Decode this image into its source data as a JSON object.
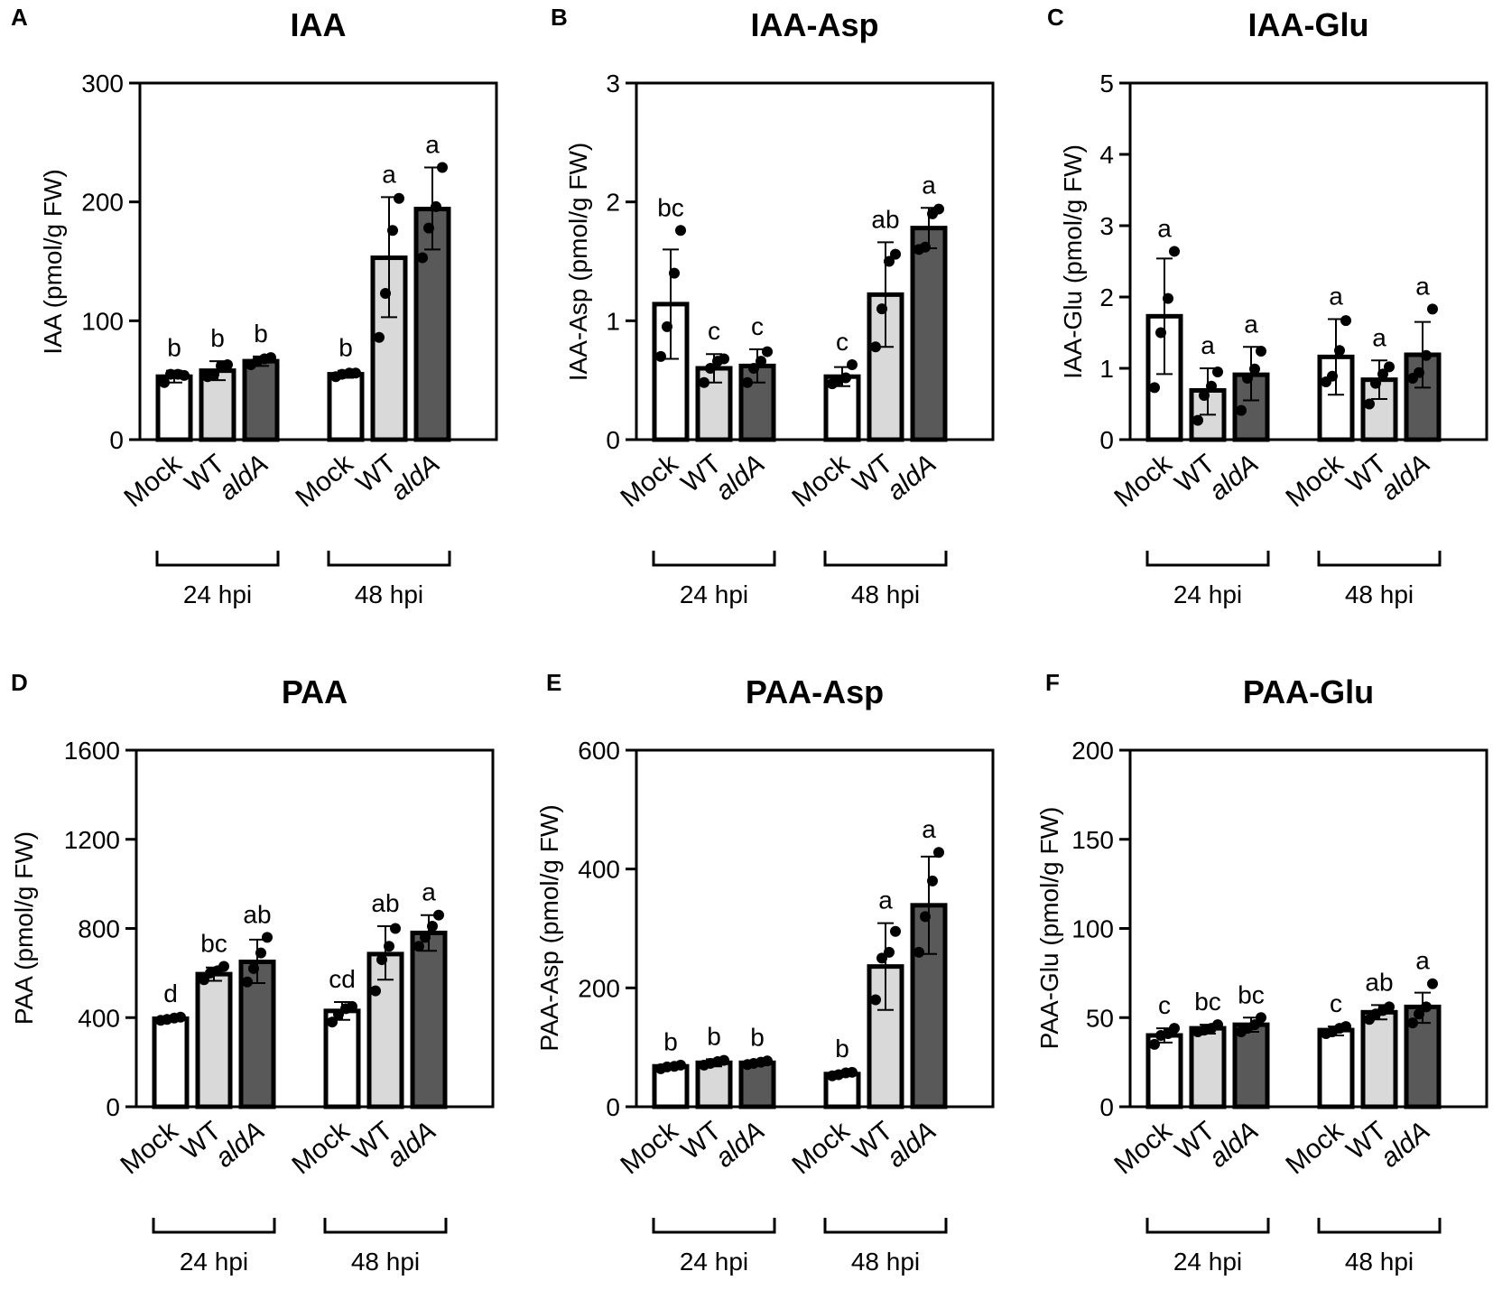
{
  "figure": {
    "groups": [
      "24 hpi",
      "48 hpi"
    ],
    "bar_colors": {
      "Mock": "#ffffff",
      "WT": "#d9d9d9",
      "aldA": "#595959"
    },
    "bar_stroke": "#000000",
    "point_color": "#000000"
  },
  "chart_data": [
    {
      "panel": "A",
      "title": "IAA",
      "type": "bar",
      "ylabel": "IAA (pmol/g FW)",
      "ylim": [
        0,
        300
      ],
      "yticks": [
        0,
        100,
        200,
        300
      ],
      "categories": [
        "Mock",
        "WT",
        "aldA",
        "Mock",
        "WT",
        "aldA"
      ],
      "values": [
        53,
        58,
        66,
        55,
        153,
        194
      ],
      "error": [
        [
          48,
          58
        ],
        [
          50,
          66
        ],
        [
          62,
          70
        ],
        [
          52,
          58
        ],
        [
          103,
          204
        ],
        [
          160,
          229
        ]
      ],
      "points": [
        [
          48,
          55,
          55,
          54
        ],
        [
          53,
          55,
          62,
          63
        ],
        [
          63,
          66,
          68,
          69
        ],
        [
          53,
          55,
          56,
          56
        ],
        [
          86,
          123,
          176,
          203
        ],
        [
          153,
          178,
          196,
          229
        ]
      ],
      "letters": [
        "b",
        "b",
        "b",
        "b",
        "a",
        "a"
      ]
    },
    {
      "panel": "B",
      "title": "IAA-Asp",
      "type": "bar",
      "ylabel": "IAA-Asp (pmol/g FW)",
      "ylim": [
        0,
        3
      ],
      "yticks": [
        0,
        1,
        2,
        3
      ],
      "categories": [
        "Mock",
        "WT",
        "aldA",
        "Mock",
        "WT",
        "aldA"
      ],
      "values": [
        1.14,
        0.6,
        0.62,
        0.53,
        1.22,
        1.78
      ],
      "error": [
        [
          0.68,
          1.6
        ],
        [
          0.48,
          0.72
        ],
        [
          0.48,
          0.76
        ],
        [
          0.45,
          0.61
        ],
        [
          0.78,
          1.66
        ],
        [
          1.61,
          1.95
        ]
      ],
      "points": [
        [
          0.7,
          0.95,
          1.4,
          1.76
        ],
        [
          0.48,
          0.6,
          0.66,
          0.68
        ],
        [
          0.48,
          0.6,
          0.66,
          0.74
        ],
        [
          0.47,
          0.5,
          0.52,
          0.63
        ],
        [
          0.78,
          1.1,
          1.5,
          1.56
        ],
        [
          1.6,
          1.62,
          1.9,
          1.94
        ]
      ],
      "letters": [
        "bc",
        "c",
        "c",
        "c",
        "ab",
        "a"
      ]
    },
    {
      "panel": "C",
      "title": "IAA-Glu",
      "type": "bar",
      "ylabel": "IAA-Glu (pmol/g FW)",
      "ylim": [
        0,
        5
      ],
      "yticks": [
        0,
        1,
        2,
        3,
        4,
        5
      ],
      "categories": [
        "Mock",
        "WT",
        "aldA",
        "Mock",
        "WT",
        "aldA"
      ],
      "values": [
        1.73,
        0.69,
        0.91,
        1.16,
        0.84,
        1.19
      ],
      "error": [
        [
          0.92,
          2.54
        ],
        [
          0.35,
          1.0
        ],
        [
          0.55,
          1.3
        ],
        [
          0.63,
          1.69
        ],
        [
          0.57,
          1.11
        ],
        [
          0.73,
          1.65
        ]
      ],
      "points": [
        [
          0.73,
          1.5,
          1.98,
          2.64
        ],
        [
          0.27,
          0.62,
          0.75,
          0.95
        ],
        [
          0.41,
          0.86,
          0.99,
          1.24
        ],
        [
          0.81,
          0.89,
          1.25,
          1.67
        ],
        [
          0.5,
          0.79,
          0.92,
          1.02
        ],
        [
          0.86,
          0.94,
          1.18,
          1.83
        ]
      ],
      "letters": [
        "a",
        "a",
        "a",
        "a",
        "a",
        "a"
      ]
    },
    {
      "panel": "D",
      "title": "PAA",
      "type": "bar",
      "ylabel": "PAA (pmol/g FW)",
      "ylim": [
        0,
        1600
      ],
      "yticks": [
        0,
        400,
        800,
        1200,
        1600
      ],
      "categories": [
        "Mock",
        "WT",
        "aldA",
        "Mock",
        "WT",
        "aldA"
      ],
      "values": [
        395,
        595,
        650,
        430,
        685,
        780
      ],
      "error": [
        [
          385,
          405
        ],
        [
          565,
          625
        ],
        [
          555,
          750
        ],
        [
          390,
          470
        ],
        [
          570,
          810
        ],
        [
          700,
          860
        ]
      ],
      "points": [
        [
          388,
          392,
          398,
          402
        ],
        [
          570,
          600,
          610,
          630
        ],
        [
          560,
          620,
          690,
          760
        ],
        [
          380,
          415,
          440,
          450
        ],
        [
          520,
          660,
          720,
          800
        ],
        [
          720,
          760,
          810,
          860
        ]
      ],
      "letters": [
        "d",
        "bc",
        "ab",
        "cd",
        "ab",
        "a"
      ]
    },
    {
      "panel": "E",
      "title": "PAA-Asp",
      "type": "bar",
      "ylabel": "PAA-Asp (pmol/g FW)",
      "ylim": [
        0,
        600
      ],
      "yticks": [
        0,
        200,
        400,
        600
      ],
      "categories": [
        "Mock",
        "WT",
        "aldA",
        "Mock",
        "WT",
        "aldA"
      ],
      "values": [
        68,
        74,
        74,
        55,
        236,
        339
      ],
      "error": [
        [
          63,
          71
        ],
        [
          68,
          80
        ],
        [
          70,
          78
        ],
        [
          52,
          59
        ],
        [
          163,
          309
        ],
        [
          257,
          421
        ]
      ],
      "points": [
        [
          64,
          67,
          68,
          70
        ],
        [
          70,
          73,
          76,
          78
        ],
        [
          71,
          73,
          75,
          77
        ],
        [
          52,
          54,
          57,
          58
        ],
        [
          180,
          250,
          260,
          295
        ],
        [
          260,
          320,
          380,
          428
        ]
      ],
      "letters": [
        "b",
        "b",
        "b",
        "b",
        "a",
        "a"
      ]
    },
    {
      "panel": "F",
      "title": "PAA-Glu",
      "type": "bar",
      "ylabel": "PAA-Glu (pmol/g FW)",
      "ylim": [
        0,
        200
      ],
      "yticks": [
        0,
        50,
        100,
        150,
        200
      ],
      "categories": [
        "Mock",
        "WT",
        "aldA",
        "Mock",
        "WT",
        "aldA"
      ],
      "values": [
        40,
        44,
        46,
        43,
        53,
        56
      ],
      "error": [
        [
          36,
          44
        ],
        [
          41,
          46
        ],
        [
          42,
          50
        ],
        [
          40,
          45
        ],
        [
          49,
          57
        ],
        [
          47,
          64
        ]
      ],
      "points": [
        [
          35,
          40,
          41,
          44
        ],
        [
          42,
          43,
          44,
          46
        ],
        [
          42,
          44,
          46,
          50
        ],
        [
          41,
          42,
          44,
          45
        ],
        [
          49,
          52,
          54,
          56
        ],
        [
          47,
          52,
          56,
          69
        ]
      ],
      "letters": [
        "c",
        "bc",
        "bc",
        "c",
        "ab",
        "a"
      ]
    }
  ]
}
